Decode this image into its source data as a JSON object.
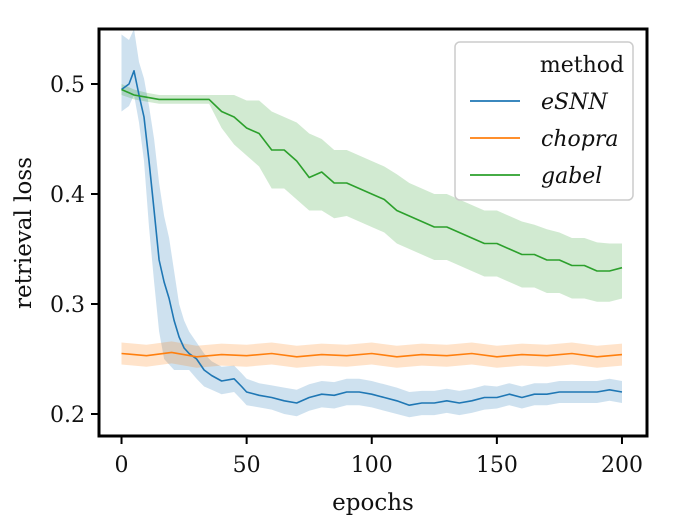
{
  "chart_data": {
    "type": "line",
    "xlabel": "epochs",
    "ylabel": "retrieval loss",
    "xlim": [
      -9,
      210
    ],
    "ylim": [
      0.18,
      0.55
    ],
    "xticks": [
      0,
      50,
      100,
      150,
      200
    ],
    "xtick_labels": [
      "0",
      "50",
      "100",
      "150",
      "200"
    ],
    "yticks": [
      0.2,
      0.3,
      0.4,
      0.5
    ],
    "ytick_labels": [
      "0.2",
      "0.3",
      "0.4",
      "0.5"
    ],
    "grid": false,
    "legend": {
      "title": "method",
      "position": "top-right"
    },
    "series": [
      {
        "name": "eSNN",
        "color": "#1f77b4",
        "band_color": "#1f77b4",
        "points": [
          [
            0,
            0.495
          ],
          [
            3,
            0.5
          ],
          [
            5,
            0.512
          ],
          [
            7,
            0.49
          ],
          [
            9,
            0.47
          ],
          [
            11,
            0.43
          ],
          [
            13,
            0.385
          ],
          [
            15,
            0.34
          ],
          [
            17,
            0.32
          ],
          [
            19,
            0.305
          ],
          [
            21,
            0.285
          ],
          [
            23,
            0.27
          ],
          [
            25,
            0.26
          ],
          [
            27,
            0.255
          ],
          [
            30,
            0.25
          ],
          [
            33,
            0.24
          ],
          [
            36,
            0.235
          ],
          [
            40,
            0.23
          ],
          [
            45,
            0.232
          ],
          [
            48,
            0.225
          ],
          [
            50,
            0.22
          ],
          [
            55,
            0.217
          ],
          [
            60,
            0.215
          ],
          [
            65,
            0.212
          ],
          [
            70,
            0.21
          ],
          [
            75,
            0.215
          ],
          [
            80,
            0.218
          ],
          [
            85,
            0.217
          ],
          [
            90,
            0.22
          ],
          [
            95,
            0.22
          ],
          [
            100,
            0.218
          ],
          [
            105,
            0.215
          ],
          [
            110,
            0.212
          ],
          [
            115,
            0.208
          ],
          [
            120,
            0.21
          ],
          [
            125,
            0.21
          ],
          [
            130,
            0.212
          ],
          [
            135,
            0.21
          ],
          [
            140,
            0.212
          ],
          [
            145,
            0.215
          ],
          [
            150,
            0.215
          ],
          [
            155,
            0.218
          ],
          [
            160,
            0.215
          ],
          [
            165,
            0.218
          ],
          [
            170,
            0.218
          ],
          [
            175,
            0.22
          ],
          [
            180,
            0.22
          ],
          [
            185,
            0.22
          ],
          [
            190,
            0.22
          ],
          [
            195,
            0.222
          ],
          [
            200,
            0.22
          ]
        ],
        "band": [
          [
            0,
            0.475,
            0.545
          ],
          [
            3,
            0.48,
            0.54
          ],
          [
            5,
            0.49,
            0.55
          ],
          [
            7,
            0.465,
            0.52
          ],
          [
            9,
            0.43,
            0.505
          ],
          [
            11,
            0.37,
            0.48
          ],
          [
            13,
            0.32,
            0.45
          ],
          [
            15,
            0.275,
            0.41
          ],
          [
            17,
            0.25,
            0.38
          ],
          [
            19,
            0.245,
            0.36
          ],
          [
            21,
            0.24,
            0.33
          ],
          [
            23,
            0.24,
            0.3
          ],
          [
            25,
            0.24,
            0.285
          ],
          [
            27,
            0.24,
            0.275
          ],
          [
            30,
            0.232,
            0.265
          ],
          [
            33,
            0.225,
            0.255
          ],
          [
            36,
            0.222,
            0.248
          ],
          [
            40,
            0.218,
            0.243
          ],
          [
            45,
            0.22,
            0.244
          ],
          [
            48,
            0.213,
            0.237
          ],
          [
            50,
            0.208,
            0.232
          ],
          [
            55,
            0.206,
            0.228
          ],
          [
            60,
            0.204,
            0.226
          ],
          [
            65,
            0.2,
            0.224
          ],
          [
            70,
            0.198,
            0.222
          ],
          [
            75,
            0.203,
            0.227
          ],
          [
            80,
            0.206,
            0.23
          ],
          [
            85,
            0.205,
            0.229
          ],
          [
            90,
            0.208,
            0.232
          ],
          [
            95,
            0.208,
            0.232
          ],
          [
            100,
            0.206,
            0.23
          ],
          [
            105,
            0.203,
            0.227
          ],
          [
            110,
            0.2,
            0.224
          ],
          [
            115,
            0.197,
            0.22
          ],
          [
            120,
            0.199,
            0.221
          ],
          [
            125,
            0.199,
            0.221
          ],
          [
            130,
            0.201,
            0.223
          ],
          [
            135,
            0.199,
            0.221
          ],
          [
            140,
            0.201,
            0.223
          ],
          [
            145,
            0.204,
            0.226
          ],
          [
            150,
            0.205,
            0.225
          ],
          [
            155,
            0.208,
            0.228
          ],
          [
            160,
            0.205,
            0.225
          ],
          [
            165,
            0.208,
            0.228
          ],
          [
            170,
            0.208,
            0.228
          ],
          [
            175,
            0.21,
            0.23
          ],
          [
            180,
            0.21,
            0.23
          ],
          [
            185,
            0.21,
            0.23
          ],
          [
            190,
            0.21,
            0.23
          ],
          [
            195,
            0.212,
            0.232
          ],
          [
            200,
            0.21,
            0.23
          ]
        ]
      },
      {
        "name": "chopra",
        "color": "#ff7f0e",
        "band_color": "#ff7f0e",
        "points": [
          [
            0,
            0.255
          ],
          [
            10,
            0.253
          ],
          [
            20,
            0.256
          ],
          [
            30,
            0.252
          ],
          [
            40,
            0.254
          ],
          [
            50,
            0.253
          ],
          [
            60,
            0.255
          ],
          [
            70,
            0.252
          ],
          [
            80,
            0.254
          ],
          [
            90,
            0.253
          ],
          [
            100,
            0.255
          ],
          [
            110,
            0.252
          ],
          [
            120,
            0.254
          ],
          [
            130,
            0.253
          ],
          [
            140,
            0.255
          ],
          [
            150,
            0.252
          ],
          [
            160,
            0.254
          ],
          [
            170,
            0.253
          ],
          [
            180,
            0.255
          ],
          [
            190,
            0.252
          ],
          [
            200,
            0.254
          ]
        ],
        "band": [
          [
            0,
            0.245,
            0.265
          ],
          [
            10,
            0.243,
            0.263
          ],
          [
            20,
            0.246,
            0.266
          ],
          [
            30,
            0.242,
            0.262
          ],
          [
            40,
            0.244,
            0.264
          ],
          [
            50,
            0.243,
            0.263
          ],
          [
            60,
            0.245,
            0.265
          ],
          [
            70,
            0.242,
            0.262
          ],
          [
            80,
            0.244,
            0.264
          ],
          [
            90,
            0.243,
            0.263
          ],
          [
            100,
            0.245,
            0.265
          ],
          [
            110,
            0.242,
            0.262
          ],
          [
            120,
            0.244,
            0.264
          ],
          [
            130,
            0.243,
            0.263
          ],
          [
            140,
            0.245,
            0.265
          ],
          [
            150,
            0.242,
            0.262
          ],
          [
            160,
            0.244,
            0.264
          ],
          [
            170,
            0.243,
            0.263
          ],
          [
            180,
            0.245,
            0.265
          ],
          [
            190,
            0.242,
            0.262
          ],
          [
            200,
            0.244,
            0.264
          ]
        ]
      },
      {
        "name": "gabel",
        "color": "#2ca02c",
        "band_color": "#2ca02c",
        "points": [
          [
            0,
            0.495
          ],
          [
            5,
            0.49
          ],
          [
            10,
            0.488
          ],
          [
            15,
            0.486
          ],
          [
            20,
            0.486
          ],
          [
            25,
            0.486
          ],
          [
            30,
            0.486
          ],
          [
            35,
            0.486
          ],
          [
            40,
            0.475
          ],
          [
            45,
            0.47
          ],
          [
            50,
            0.46
          ],
          [
            55,
            0.455
          ],
          [
            60,
            0.44
          ],
          [
            65,
            0.44
          ],
          [
            70,
            0.43
          ],
          [
            75,
            0.415
          ],
          [
            80,
            0.42
          ],
          [
            85,
            0.41
          ],
          [
            90,
            0.41
          ],
          [
            95,
            0.405
          ],
          [
            100,
            0.4
          ],
          [
            105,
            0.395
          ],
          [
            110,
            0.385
          ],
          [
            115,
            0.38
          ],
          [
            120,
            0.375
          ],
          [
            125,
            0.37
          ],
          [
            130,
            0.37
          ],
          [
            135,
            0.365
          ],
          [
            140,
            0.36
          ],
          [
            145,
            0.355
          ],
          [
            150,
            0.355
          ],
          [
            155,
            0.35
          ],
          [
            160,
            0.345
          ],
          [
            165,
            0.345
          ],
          [
            170,
            0.34
          ],
          [
            175,
            0.34
          ],
          [
            180,
            0.335
          ],
          [
            185,
            0.335
          ],
          [
            190,
            0.33
          ],
          [
            195,
            0.33
          ],
          [
            200,
            0.333
          ]
        ],
        "band": [
          [
            0,
            0.49,
            0.5
          ],
          [
            5,
            0.486,
            0.495
          ],
          [
            10,
            0.484,
            0.492
          ],
          [
            15,
            0.482,
            0.49
          ],
          [
            20,
            0.482,
            0.49
          ],
          [
            25,
            0.482,
            0.49
          ],
          [
            30,
            0.482,
            0.49
          ],
          [
            35,
            0.482,
            0.49
          ],
          [
            40,
            0.46,
            0.49
          ],
          [
            45,
            0.445,
            0.49
          ],
          [
            50,
            0.435,
            0.485
          ],
          [
            55,
            0.425,
            0.485
          ],
          [
            60,
            0.405,
            0.475
          ],
          [
            65,
            0.405,
            0.47
          ],
          [
            70,
            0.395,
            0.465
          ],
          [
            75,
            0.385,
            0.455
          ],
          [
            80,
            0.385,
            0.45
          ],
          [
            85,
            0.378,
            0.44
          ],
          [
            90,
            0.38,
            0.44
          ],
          [
            95,
            0.375,
            0.435
          ],
          [
            100,
            0.37,
            0.43
          ],
          [
            105,
            0.365,
            0.425
          ],
          [
            110,
            0.355,
            0.418
          ],
          [
            115,
            0.35,
            0.41
          ],
          [
            120,
            0.345,
            0.405
          ],
          [
            125,
            0.34,
            0.4
          ],
          [
            130,
            0.34,
            0.4
          ],
          [
            135,
            0.335,
            0.395
          ],
          [
            140,
            0.33,
            0.39
          ],
          [
            145,
            0.325,
            0.385
          ],
          [
            150,
            0.325,
            0.385
          ],
          [
            155,
            0.32,
            0.38
          ],
          [
            160,
            0.315,
            0.375
          ],
          [
            165,
            0.315,
            0.372
          ],
          [
            170,
            0.31,
            0.368
          ],
          [
            175,
            0.31,
            0.365
          ],
          [
            180,
            0.305,
            0.36
          ],
          [
            185,
            0.305,
            0.36
          ],
          [
            190,
            0.302,
            0.356
          ],
          [
            195,
            0.302,
            0.355
          ],
          [
            200,
            0.305,
            0.355
          ]
        ]
      }
    ]
  }
}
